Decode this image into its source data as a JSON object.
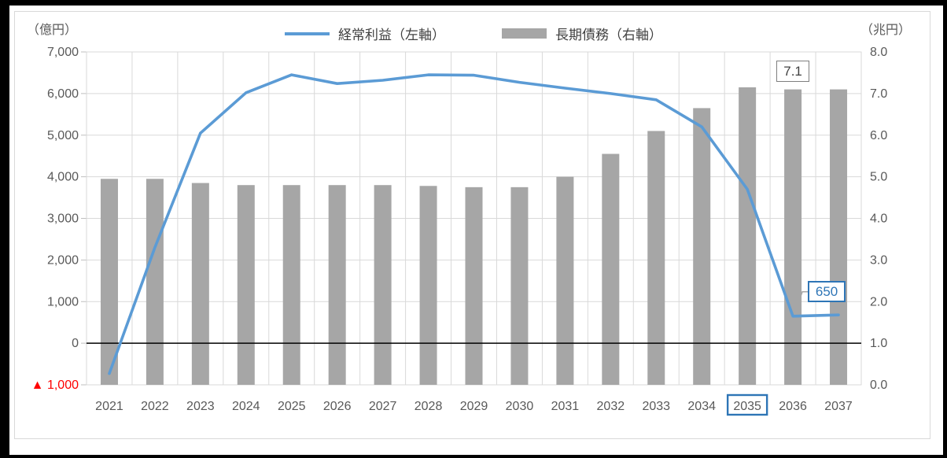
{
  "colors": {
    "line": "#5B9BD5",
    "bar": "#A6A6A6",
    "accent_blue": "#2E75B6",
    "negative_red": "#FF0000",
    "grid": "#D9D9D9",
    "axis_text": "#595959",
    "zero_line": "#000000"
  },
  "chart_data": {
    "type": "combo",
    "categories": [
      "2021",
      "2022",
      "2023",
      "2024",
      "2025",
      "2026",
      "2027",
      "2028",
      "2029",
      "2030",
      "2031",
      "2032",
      "2033",
      "2034",
      "2035",
      "2036",
      "2037"
    ],
    "series": [
      {
        "name": "経常利益（左軸）",
        "type": "line",
        "axis": "left",
        "color": "#5B9BD5",
        "values": [
          -730,
          2300,
          5050,
          6020,
          6450,
          6240,
          6320,
          6450,
          6440,
          6270,
          6130,
          6000,
          5850,
          5200,
          3700,
          650,
          680
        ]
      },
      {
        "name": "長期債務（右軸）",
        "type": "bar",
        "axis": "right",
        "color": "#A6A6A6",
        "values": [
          4.95,
          4.95,
          4.85,
          4.8,
          4.8,
          4.8,
          4.8,
          4.78,
          4.75,
          4.75,
          5.0,
          5.55,
          6.1,
          6.65,
          7.15,
          7.1,
          7.1
        ]
      }
    ],
    "left_axis": {
      "unit_label": "（億円）",
      "min": -1000,
      "max": 7000,
      "step": 1000,
      "tick_labels": [
        {
          "label": "7,000"
        },
        {
          "label": "6,000"
        },
        {
          "label": "5,000"
        },
        {
          "label": "4,000"
        },
        {
          "label": "3,000"
        },
        {
          "label": "2,000"
        },
        {
          "label": "1,000"
        },
        {
          "label": "0"
        },
        {
          "label": "▲ 1,000",
          "color": "#FF0000"
        }
      ]
    },
    "right_axis": {
      "unit_label": "（兆円）",
      "min": 0,
      "max": 8,
      "step": 1,
      "tick_labels": [
        "8.0",
        "7.0",
        "6.0",
        "5.0",
        "4.0",
        "3.0",
        "2.0",
        "1.0",
        "0.0"
      ]
    },
    "annotations": {
      "bar_value_label": {
        "text": "7.1",
        "category": "2036"
      },
      "line_value_label": {
        "text": "650",
        "category": "2036"
      }
    },
    "highlighted_category": "2035",
    "grid": true,
    "legend_position": "top",
    "zero_line": true
  }
}
